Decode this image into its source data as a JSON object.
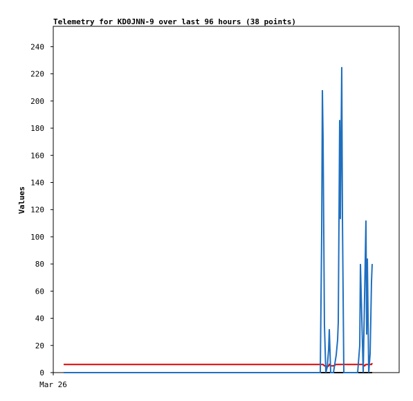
{
  "chart_data": {
    "type": "line",
    "title": "Telemetry for KD0JNN-9 over last 96 hours (38 points)",
    "y_label": "Values",
    "x": [
      2.88,
      74.11,
      74.5,
      74.69,
      74.88,
      75.26,
      75.65,
      76.03,
      76.42,
      76.61,
      76.99,
      77.76,
      78.53,
      78.91,
      79.1,
      79.49,
      79.68,
      80.06,
      80.26,
      80.64,
      81.41,
      82.18,
      82.94,
      83.71,
      84.48,
      85.06,
      85.25,
      85.63,
      86.02,
      86.4,
      86.78,
      86.98,
      87.17,
      87.55,
      87.94,
      88.13,
      88.32,
      88.51
    ],
    "xlim": [
      0,
      96
    ],
    "xticks": [
      {
        "value": 0,
        "label": "Mar 26"
      }
    ],
    "ylim": [
      0,
      255
    ],
    "yticks": [
      0,
      20,
      40,
      60,
      80,
      100,
      120,
      140,
      160,
      180,
      200,
      220,
      240
    ],
    "series": [
      {
        "color": "#000000",
        "values": [
          0,
          0,
          0,
          0,
          0,
          0,
          0,
          0,
          0,
          0,
          0,
          0,
          0,
          0,
          0,
          0,
          0,
          0,
          0,
          0,
          0,
          0,
          0,
          0,
          0,
          0,
          0,
          0,
          0,
          0,
          0,
          0,
          0,
          0,
          0,
          0,
          0,
          0
        ]
      },
      {
        "color": "#e00000",
        "values": [
          6,
          6,
          6,
          6,
          6,
          5,
          5,
          4,
          5,
          6,
          5,
          5,
          6,
          6,
          6,
          6,
          6,
          6,
          6,
          6,
          6,
          6,
          6,
          6,
          6,
          6,
          6,
          6,
          6,
          5,
          6,
          6,
          6,
          6,
          6,
          6,
          6,
          7
        ]
      },
      {
        "color": "#1f6fbf",
        "values": [
          0,
          0,
          104,
          208,
          173,
          35,
          0,
          4,
          17,
          32,
          0,
          0,
          13,
          24,
          37,
          186,
          113,
          225,
          113,
          0,
          0,
          0,
          0,
          0,
          0,
          20,
          80,
          40,
          0,
          56,
          112,
          28,
          84,
          0,
          14,
          40,
          67,
          80
        ]
      }
    ]
  }
}
